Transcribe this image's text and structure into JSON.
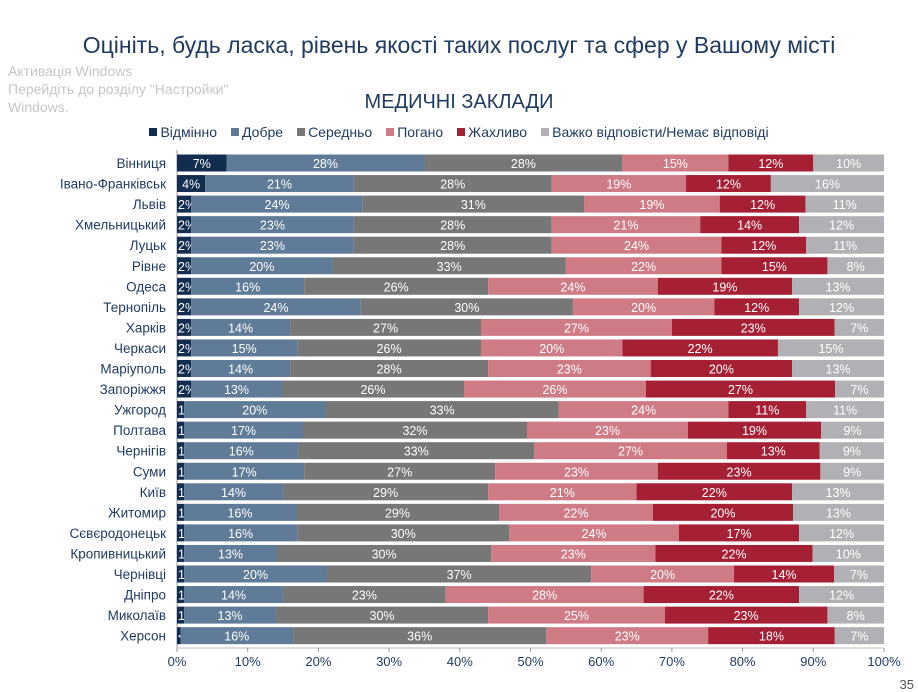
{
  "title": "Оцініть, будь ласка, рівень якості таких послуг та сфер у Вашому місті",
  "page_number": "35",
  "watermark": [
    "Активація Windows",
    "Перейдіть до розділу \"Настройки\"",
    "Windows."
  ],
  "chart_data": {
    "type": "bar",
    "orientation": "horizontal",
    "stacked": "100%",
    "title": "МЕДИЧНІ ЗАКЛАДИ",
    "legend_position": "top",
    "xlim": [
      0,
      100
    ],
    "x_ticks": [
      "0%",
      "10%",
      "20%",
      "30%",
      "40%",
      "50%",
      "60%",
      "70%",
      "80%",
      "90%",
      "100%"
    ],
    "categories": [
      "Вінниця",
      "Івано-Франківськ",
      "Львів",
      "Хмельницький",
      "Луцьк",
      "Рівне",
      "Одеса",
      "Тернопіль",
      "Харків",
      "Черкаси",
      "Маріуполь",
      "Запоріжжя",
      "Ужгород",
      "Полтава",
      "Чернігів",
      "Суми",
      "Київ",
      "Житомир",
      "Сєвєродонецьк",
      "Кропивницький",
      "Чернівці",
      "Дніпро",
      "Миколаїв",
      "Херсон"
    ],
    "series": [
      {
        "name": "Відмінно",
        "color": "#132d4f",
        "values": [
          7,
          4,
          2,
          2,
          2,
          2,
          2,
          2,
          2,
          2,
          2,
          2,
          1,
          1,
          1,
          1,
          1,
          1,
          1,
          1,
          1,
          1,
          1,
          null
        ],
        "labels_override": {
          "23": "<1%"
        }
      },
      {
        "name": "Добре",
        "color": "#607b97",
        "values": [
          28,
          21,
          24,
          23,
          23,
          20,
          16,
          24,
          14,
          15,
          14,
          13,
          20,
          17,
          16,
          17,
          14,
          16,
          16,
          13,
          20,
          14,
          13,
          16
        ]
      },
      {
        "name": "Середньо",
        "color": "#777777",
        "values": [
          28,
          28,
          31,
          28,
          28,
          33,
          26,
          30,
          27,
          26,
          28,
          26,
          33,
          32,
          33,
          27,
          29,
          29,
          30,
          30,
          37,
          23,
          30,
          36
        ]
      },
      {
        "name": "Погано",
        "color": "#cf7b86",
        "values": [
          15,
          19,
          19,
          21,
          24,
          22,
          24,
          20,
          27,
          20,
          23,
          26,
          24,
          23,
          27,
          23,
          21,
          22,
          24,
          23,
          20,
          28,
          25,
          23
        ]
      },
      {
        "name": "Жахливо",
        "color": "#a62035",
        "values": [
          12,
          12,
          12,
          14,
          12,
          15,
          19,
          12,
          23,
          22,
          20,
          27,
          11,
          19,
          13,
          23,
          22,
          20,
          17,
          22,
          14,
          22,
          23,
          18
        ]
      },
      {
        "name": "Важко відповісти/Немає відповіді",
        "color": "#b1b1b5",
        "values": [
          10,
          16,
          11,
          12,
          11,
          8,
          13,
          12,
          7,
          15,
          13,
          7,
          11,
          9,
          9,
          9,
          13,
          13,
          12,
          10,
          7,
          12,
          8,
          7
        ]
      }
    ]
  }
}
